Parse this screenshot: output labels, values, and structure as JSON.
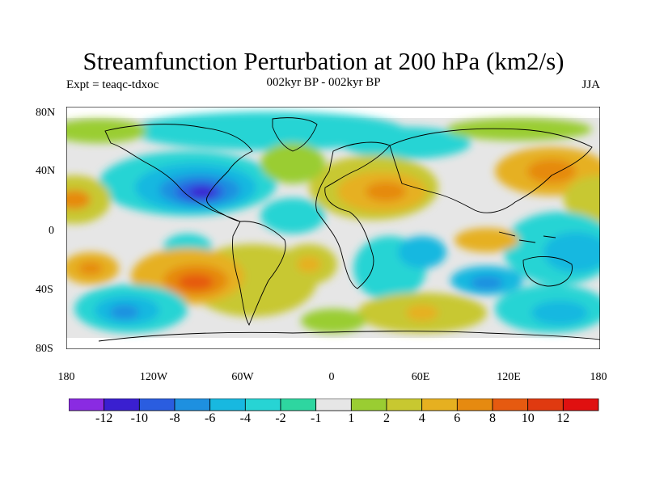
{
  "title": "Streamfunction Perturbation at 200 hPa (km2/s)",
  "subtitle_left": "Expt = teaqc-tdxoc",
  "subtitle_center": "002kyr BP - 002kyr BP",
  "subtitle_right": "JJA",
  "lat_labels": [
    "80N",
    "40N",
    "0",
    "40S",
    "80S"
  ],
  "lon_labels": [
    "180",
    "120W",
    "60W",
    "0",
    "60E",
    "120E",
    "180"
  ],
  "colorbar": {
    "labels": [
      "-12",
      "-10",
      "-8",
      "-6",
      "-4",
      "-2",
      "-1",
      "1",
      "2",
      "4",
      "6",
      "8",
      "10",
      "12"
    ],
    "colors": [
      "#8a2be2",
      "#3a1fd0",
      "#2a5de0",
      "#1e90e0",
      "#18b8e0",
      "#27d4d4",
      "#2ed6a0",
      "#e6e6e6",
      "#9acd32",
      "#c8c830",
      "#e6b020",
      "#e68a10",
      "#e65a10",
      "#e03a10",
      "#e01010"
    ]
  },
  "colors": {
    "neutral": "#e6e6e6",
    "coast": "#000000"
  }
}
